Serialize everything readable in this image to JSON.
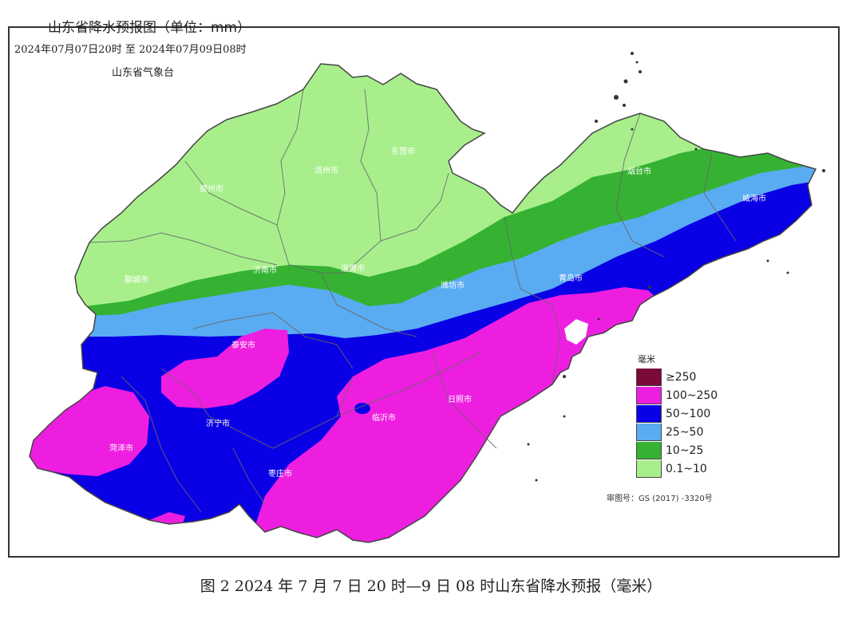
{
  "map": {
    "title": "山东省降水预报图（单位：mm）",
    "time_range": "2024年07月07日20时  至  2024年07月09日08时",
    "agency": "山东省气象台",
    "approval_number": "审图号：GS (2017) -3320号"
  },
  "cities": [
    {
      "name": "德州市"
    },
    {
      "name": "滨州市"
    },
    {
      "name": "东营市"
    },
    {
      "name": "聊城市"
    },
    {
      "name": "济南市"
    },
    {
      "name": "淄博市"
    },
    {
      "name": "潍坊市"
    },
    {
      "name": "烟台市"
    },
    {
      "name": "威海市"
    },
    {
      "name": "青岛市"
    },
    {
      "name": "泰安市"
    },
    {
      "name": "济宁市"
    },
    {
      "name": "菏泽市"
    },
    {
      "name": "临沂市"
    },
    {
      "name": "日照市"
    },
    {
      "name": "枣庄市"
    }
  ],
  "legend": {
    "unit": "毫米",
    "items": [
      {
        "label": "≥250",
        "color": "#7b0a3a"
      },
      {
        "label": "100~250",
        "color": "#ee1ee0"
      },
      {
        "label": "50~100",
        "color": "#0a00e6"
      },
      {
        "label": "25~50",
        "color": "#5aacf2"
      },
      {
        "label": "10~25",
        "color": "#36b233"
      },
      {
        "label": "0.1~10",
        "color": "#a8ef8c"
      }
    ]
  },
  "caption": "图 2 2024 年 7 月 7 日 20 时—9 日 08 时山东省降水预报（毫米）"
}
